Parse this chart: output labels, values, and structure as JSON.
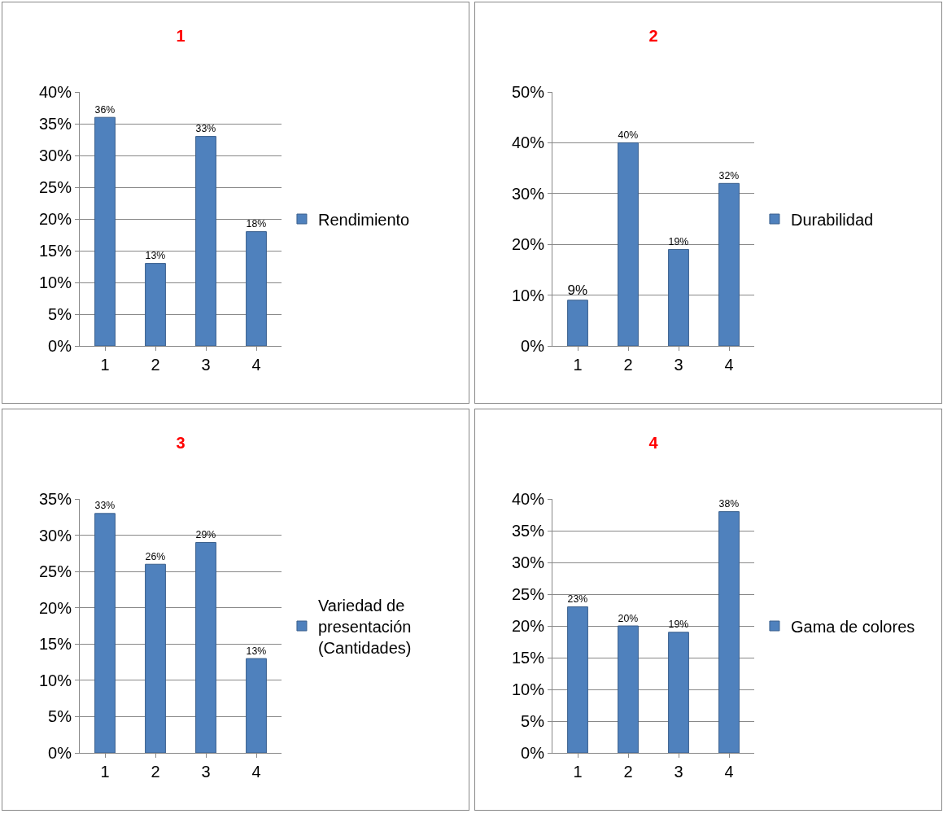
{
  "chart_data": [
    {
      "type": "bar",
      "title": "1",
      "categories": [
        "1",
        "2",
        "3",
        "4"
      ],
      "series": [
        {
          "name": "Rendimiento",
          "color": "#4f81bd",
          "values": [
            36,
            13,
            33,
            18
          ]
        }
      ],
      "value_labels": [
        "36%",
        "13%",
        "33%",
        "18%"
      ],
      "ylim": [
        0,
        40
      ],
      "yticks": [
        {
          "value": 0,
          "label": "0%"
        },
        {
          "value": 5,
          "label": "5%"
        },
        {
          "value": 10,
          "label": "10%"
        },
        {
          "value": 15,
          "label": "15%"
        },
        {
          "value": 20,
          "label": "20%"
        },
        {
          "value": 25,
          "label": "25%"
        },
        {
          "value": 30,
          "label": "30%"
        },
        {
          "value": 35,
          "label": "35%"
        },
        {
          "value": 40,
          "label": "40%"
        }
      ],
      "grid": "y",
      "legend": "right"
    },
    {
      "type": "bar",
      "title": "2",
      "categories": [
        "1",
        "2",
        "3",
        "4"
      ],
      "series": [
        {
          "name": "Durabilidad",
          "color": "#4f81bd",
          "values": [
            9,
            40,
            19,
            32
          ]
        }
      ],
      "value_labels": [
        "9%",
        "40%",
        "19%",
        "32%"
      ],
      "ylim": [
        0,
        50
      ],
      "yticks": [
        {
          "value": 0,
          "label": "0%"
        },
        {
          "value": 10,
          "label": "10%"
        },
        {
          "value": 20,
          "label": "20%"
        },
        {
          "value": 30,
          "label": "30%"
        },
        {
          "value": 40,
          "label": "40%"
        },
        {
          "value": 50,
          "label": "50%"
        }
      ],
      "grid": "y",
      "legend": "right"
    },
    {
      "type": "bar",
      "title": "3",
      "categories": [
        "1",
        "2",
        "3",
        "4"
      ],
      "series": [
        {
          "name": "Variedad de presentación (Cantidades)",
          "color": "#4f81bd",
          "values": [
            33,
            26,
            29,
            13
          ]
        }
      ],
      "value_labels": [
        "33%",
        "26%",
        "29%",
        "13%"
      ],
      "ylim": [
        0,
        35
      ],
      "yticks": [
        {
          "value": 0,
          "label": "0%"
        },
        {
          "value": 5,
          "label": "5%"
        },
        {
          "value": 10,
          "label": "10%"
        },
        {
          "value": 15,
          "label": "15%"
        },
        {
          "value": 20,
          "label": "20%"
        },
        {
          "value": 25,
          "label": "25%"
        },
        {
          "value": 30,
          "label": "30%"
        },
        {
          "value": 35,
          "label": "35%"
        }
      ],
      "grid": "y",
      "legend": "right"
    },
    {
      "type": "bar",
      "title": "4",
      "categories": [
        "1",
        "2",
        "3",
        "4"
      ],
      "series": [
        {
          "name": "Gama de colores",
          "color": "#4f81bd",
          "values": [
            23,
            20,
            19,
            38
          ]
        }
      ],
      "value_labels": [
        "23%",
        "20%",
        "19%",
        "38%"
      ],
      "ylim": [
        0,
        40
      ],
      "yticks": [
        {
          "value": 0,
          "label": "0%"
        },
        {
          "value": 5,
          "label": "5%"
        },
        {
          "value": 10,
          "label": "10%"
        },
        {
          "value": 15,
          "label": "15%"
        },
        {
          "value": 20,
          "label": "20%"
        },
        {
          "value": 25,
          "label": "25%"
        },
        {
          "value": 30,
          "label": "30%"
        },
        {
          "value": 35,
          "label": "35%"
        },
        {
          "value": 40,
          "label": "40%"
        }
      ],
      "grid": "y",
      "legend": "right"
    }
  ]
}
